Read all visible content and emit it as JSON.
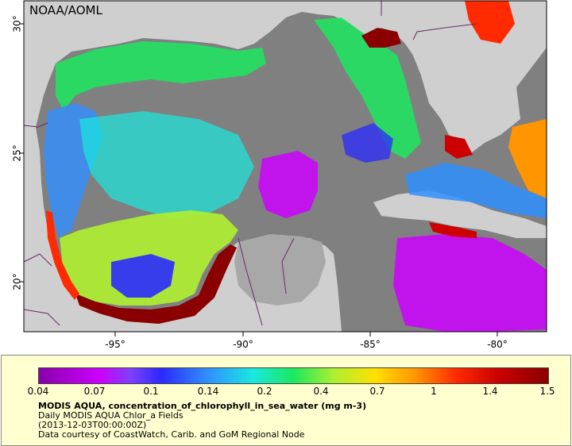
{
  "map": {
    "org_label": "NOAA/AOML",
    "lon_labels": [
      "-95°",
      "-90°",
      "-85°",
      "-80°"
    ],
    "lat_labels": [
      "30°",
      "25°",
      "20°"
    ],
    "colors": {
      "land": "#cfcfcf",
      "no_data": "#808080",
      "border": "#6b2b6b"
    }
  },
  "legend": {
    "colorbar_labels": [
      "0.04",
      "0.07",
      "0.1",
      "0.14",
      "0.2",
      "0.4",
      "0.7",
      "1",
      "1.4",
      "1.5"
    ],
    "title": "MODIS AQUA, concentration_of_chlorophyll_in_sea_water (mg m-3)",
    "subtitle": "Daily MODIS AQUA Chlor_a Fields",
    "timestamp": "(2013-12-03T00:00:00Z)",
    "credit": "Data courtesy of CoastWatch, Carib. and GoM Regional Node",
    "colors": {
      "background": "#ffffd0"
    }
  }
}
